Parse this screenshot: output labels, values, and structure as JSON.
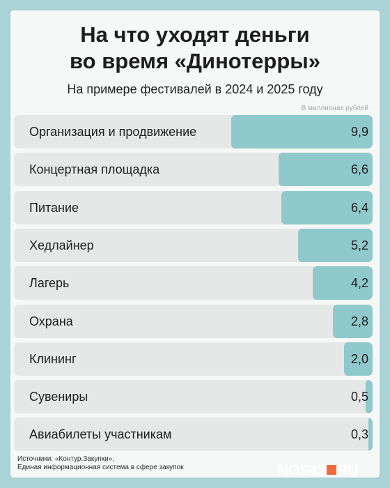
{
  "header": {
    "title_line1": "На что уходят деньги",
    "title_line2": "во время «Динотерры»",
    "subtitle": "На примере фестивалей в 2024 и 2025 году"
  },
  "unit_note": "В миллионах рублей",
  "colors": {
    "background": "#a9d3d6",
    "bar": "#8fc9cc",
    "row_background": "#e6e7e7",
    "logo_mark": "#f06a3a"
  },
  "chart_data": {
    "type": "bar",
    "orientation": "horizontal",
    "categories": [
      "Организация и продвижение",
      "Концертная площадка",
      "Питание",
      "Хедлайнер",
      "Лагерь",
      "Охрана",
      "Клининг",
      "Сувениры",
      "Авиабилеты участникам"
    ],
    "values": [
      9.9,
      6.6,
      6.4,
      5.2,
      4.2,
      2.8,
      2.0,
      0.5,
      0.3
    ],
    "value_labels": [
      "9,9",
      "6,6",
      "6,4",
      "5,2",
      "4,2",
      "2,8",
      "2,0",
      "0,5",
      "0,3"
    ],
    "title": "На что уходят деньги во время «Динотерры»",
    "subtitle": "На примере фестивалей в 2024 и 2025 году",
    "value_unit": "В миллионах рублей",
    "xlim": [
      0,
      9.9
    ],
    "grid": false,
    "legend": "none"
  },
  "footer": {
    "source_line1": "Источники: «Контур.Закупки»,",
    "source_line2": "Единая информационная система в сфере закупок",
    "logo_left": "NGS42",
    "logo_right": "RU"
  }
}
